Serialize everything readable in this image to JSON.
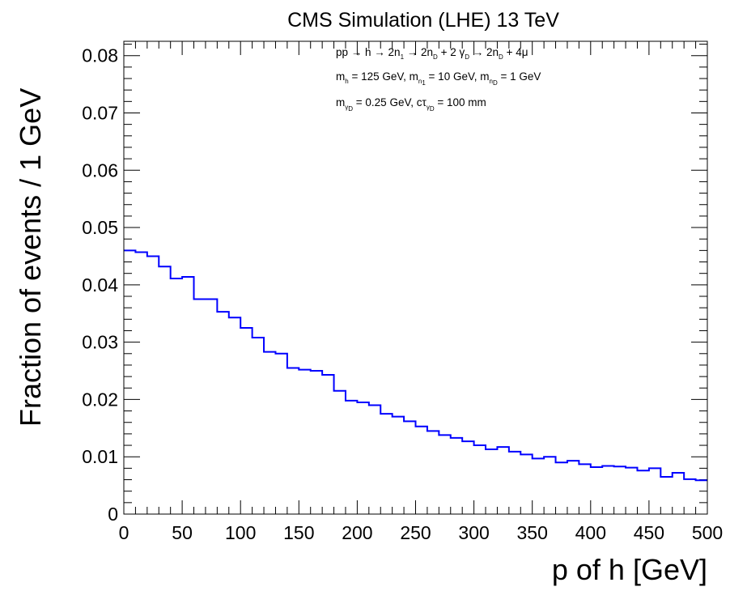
{
  "chart_data": {
    "type": "line",
    "style": "histogram-step",
    "title": "CMS Simulation (LHE) 13 TeV",
    "xlabel": "p of h [GeV]",
    "ylabel": "Fraction of events / 1 GeV",
    "xlim": [
      0,
      500
    ],
    "ylim": [
      0,
      0.0825
    ],
    "grid": false,
    "bin_width": 10,
    "x_ticks": [
      "0",
      "50",
      "100",
      "150",
      "200",
      "250",
      "300",
      "350",
      "400",
      "450",
      "500"
    ],
    "y_ticks": [
      "0",
      "0.01",
      "0.02",
      "0.03",
      "0.04",
      "0.05",
      "0.06",
      "0.07",
      "0.08"
    ],
    "annotations": {
      "line1": {
        "a": "pp",
        "b": " → h → 2n",
        "c": "1",
        "d": " → 2n",
        "e": "D",
        "f": " + 2 γ",
        "g": "D",
        "h": " → 2n",
        "i": "D",
        "j": " + 4μ"
      },
      "line2": {
        "a": "m",
        "b": "h",
        "c": " = 125 GeV, m",
        "d": "n",
        "e": "1",
        "f": " = 10 GeV, m",
        "g": "n",
        "h": "D",
        "i": " = 1 GeV"
      },
      "line3": {
        "a": "m",
        "b": "γ",
        "c": "D",
        "d": " = 0.25 GeV, cτ",
        "e": "γ",
        "f": "D",
        "g": " = 100 mm"
      }
    },
    "series": [
      {
        "color": "#0000ff",
        "bin_edges_x": [
          0,
          10,
          20,
          30,
          40,
          50,
          60,
          70,
          80,
          90,
          100,
          110,
          120,
          130,
          140,
          150,
          160,
          170,
          180,
          190,
          200,
          210,
          220,
          230,
          240,
          250,
          260,
          270,
          280,
          290,
          300,
          310,
          320,
          330,
          340,
          350,
          360,
          370,
          380,
          390,
          400,
          410,
          420,
          430,
          440,
          450,
          460,
          470,
          480,
          490
        ],
        "values": [
          0.046,
          0.0457,
          0.045,
          0.0432,
          0.0411,
          0.0414,
          0.0375,
          0.0375,
          0.0353,
          0.0343,
          0.0325,
          0.0308,
          0.0283,
          0.028,
          0.0255,
          0.0252,
          0.025,
          0.0243,
          0.0215,
          0.0198,
          0.0195,
          0.019,
          0.0175,
          0.017,
          0.0162,
          0.0153,
          0.0145,
          0.0138,
          0.0133,
          0.0127,
          0.012,
          0.0113,
          0.0117,
          0.0109,
          0.0104,
          0.0097,
          0.01,
          0.009,
          0.0093,
          0.0087,
          0.0082,
          0.0084,
          0.0083,
          0.0081,
          0.0076,
          0.008,
          0.0065,
          0.0072,
          0.0061,
          0.0059
        ]
      }
    ]
  }
}
